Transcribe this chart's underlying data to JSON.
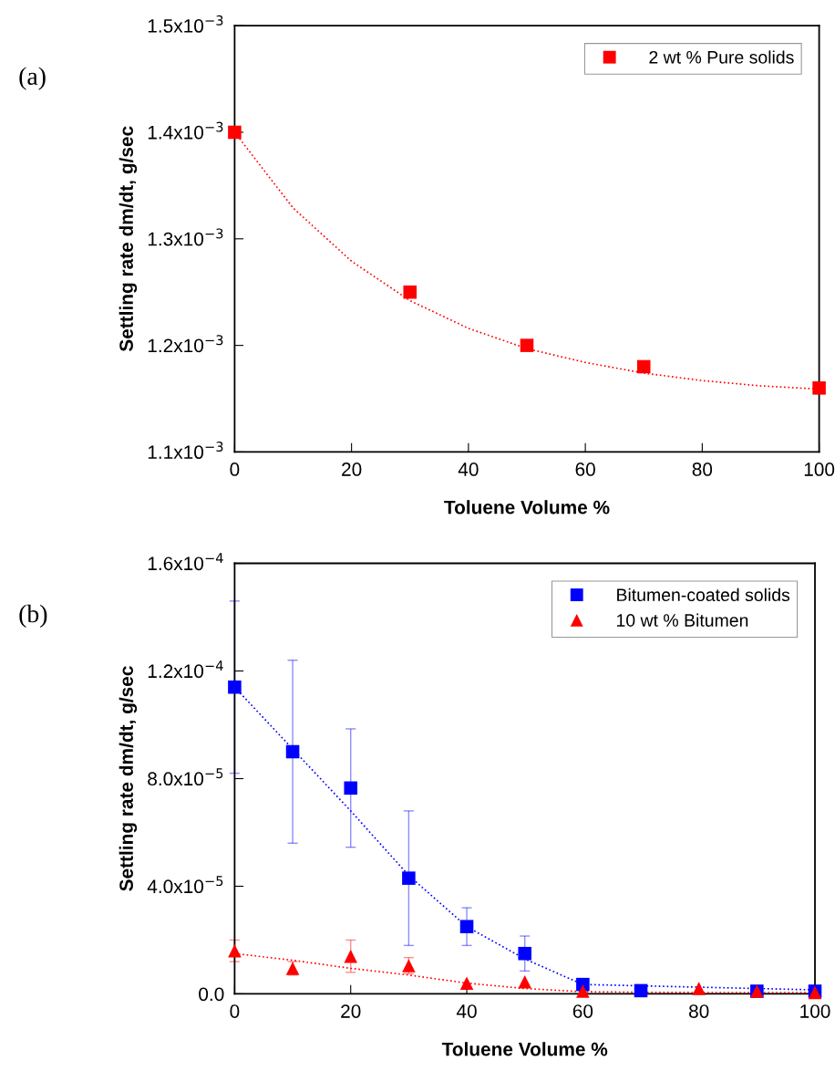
{
  "chart_data": [
    {
      "type": "scatter",
      "xlabel": "Toluene Volume %",
      "ylabel": "Settling rate dm/dt, g/sec",
      "annotations": [
        "(a)"
      ],
      "xlim": [
        0,
        100
      ],
      "xticks": [
        0,
        20,
        40,
        60,
        80,
        100
      ],
      "ylim": [
        0.0011,
        0.0015
      ],
      "yticks": [
        {
          "value": 0.0011,
          "label": "1.1x10$^{−3}$"
        },
        {
          "value": 0.0012,
          "label": "1.2x10$^{−3}$"
        },
        {
          "value": 0.0013,
          "label": "1.3x10$^{−3}$"
        },
        {
          "value": 0.0014,
          "label": "1.4x10$^{−3}$"
        },
        {
          "value": 0.0015,
          "label": "1.5x10$^{−3}$"
        }
      ],
      "grid": false,
      "legend": "top right",
      "series": [
        {
          "name": "2 wt % Pure solids",
          "color": "#ff0000",
          "marker": "square",
          "x": [
            0,
            30,
            50,
            70,
            100
          ],
          "values": [
            0.0014,
            0.00125,
            0.0012,
            0.00118,
            0.00116
          ]
        },
        {
          "type": "line",
          "color": "#ff0000",
          "line_style": "dotted",
          "marker": "none",
          "x": [
            0,
            10,
            20,
            30,
            40,
            50,
            60,
            70,
            80,
            90,
            100
          ],
          "values": [
            0.0014,
            0.001329,
            0.001279,
            0.001242,
            0.001216,
            0.001197,
            0.001184,
            0.001174,
            0.001167,
            0.001162,
            0.001159
          ]
        }
      ]
    },
    {
      "type": "scatter",
      "xlabel": "Toluene Volume %",
      "ylabel": "Settling rate dm/dt, g/sec",
      "annotations": [
        "(b)"
      ],
      "xlim": [
        0,
        100
      ],
      "xticks": [
        0,
        20,
        40,
        60,
        80,
        100
      ],
      "ylim": [
        0,
        0.00016
      ],
      "yticks": [
        {
          "value": 0,
          "label": "0.0"
        },
        {
          "value": 4e-05,
          "label": "4.0x10$^{−5}$"
        },
        {
          "value": 8e-05,
          "label": "8.0x10$^{−5}$"
        },
        {
          "value": 0.00012,
          "label": "1.2x10$^{−4}$"
        },
        {
          "value": 0.00016,
          "label": "1.6x10$^{−4}$"
        }
      ],
      "grid": false,
      "legend": "top right",
      "series": [
        {
          "name": "Bitumen-coated solids",
          "color": "#0000ff",
          "marker": "square",
          "x": [
            0,
            10,
            20,
            30,
            40,
            50,
            60,
            70,
            80,
            90,
            100
          ],
          "values": [
            0.000114,
            9e-05,
            7.65e-05,
            4.3e-05,
            2.5e-05,
            1.5e-05,
            3.5e-06,
            1.2e-06,
            null,
            1e-06,
            1e-06
          ],
          "errors": [
            3.2e-05,
            3.4e-05,
            2.2e-05,
            2.5e-05,
            7e-06,
            6.5e-06,
            null,
            null,
            null,
            null,
            null
          ]
        },
        {
          "type": "line",
          "color": "#0000ff",
          "line_style": "dotted",
          "marker": "none",
          "x": [
            0,
            10,
            20,
            30,
            40,
            50,
            60,
            70,
            80,
            90,
            100
          ],
          "values": [
            0.000114,
            9.1e-05,
            6.8e-05,
            4.4e-05,
            2.5e-05,
            1.3e-05,
            3.5e-06,
            3e-06,
            2.5e-06,
            2e-06,
            1.5e-06
          ]
        },
        {
          "name": "10 wt % Bitumen",
          "color": "#ff0000",
          "marker": "triangle",
          "x": [
            0,
            10,
            20,
            30,
            40,
            50,
            60,
            80,
            90,
            100
          ],
          "values": [
            1.6e-05,
            9.5e-06,
            1.4e-05,
            1.05e-05,
            4e-06,
            4.5e-06,
            1e-06,
            2e-06,
            1e-06,
            5e-07
          ],
          "errors": [
            4e-06,
            2.5e-06,
            6e-06,
            3e-06,
            null,
            null,
            null,
            null,
            null,
            null
          ]
        },
        {
          "type": "line",
          "color": "#ff0000",
          "line_style": "dotted",
          "marker": "none",
          "x": [
            0,
            10,
            20,
            30,
            40,
            50,
            60,
            70,
            80,
            90,
            100
          ],
          "values": [
            1.5e-05,
            1.25e-05,
            9.5e-06,
            7e-06,
            4e-06,
            2e-06,
            8e-07,
            6e-07,
            5e-07,
            5e-07,
            5e-07
          ]
        }
      ]
    }
  ]
}
